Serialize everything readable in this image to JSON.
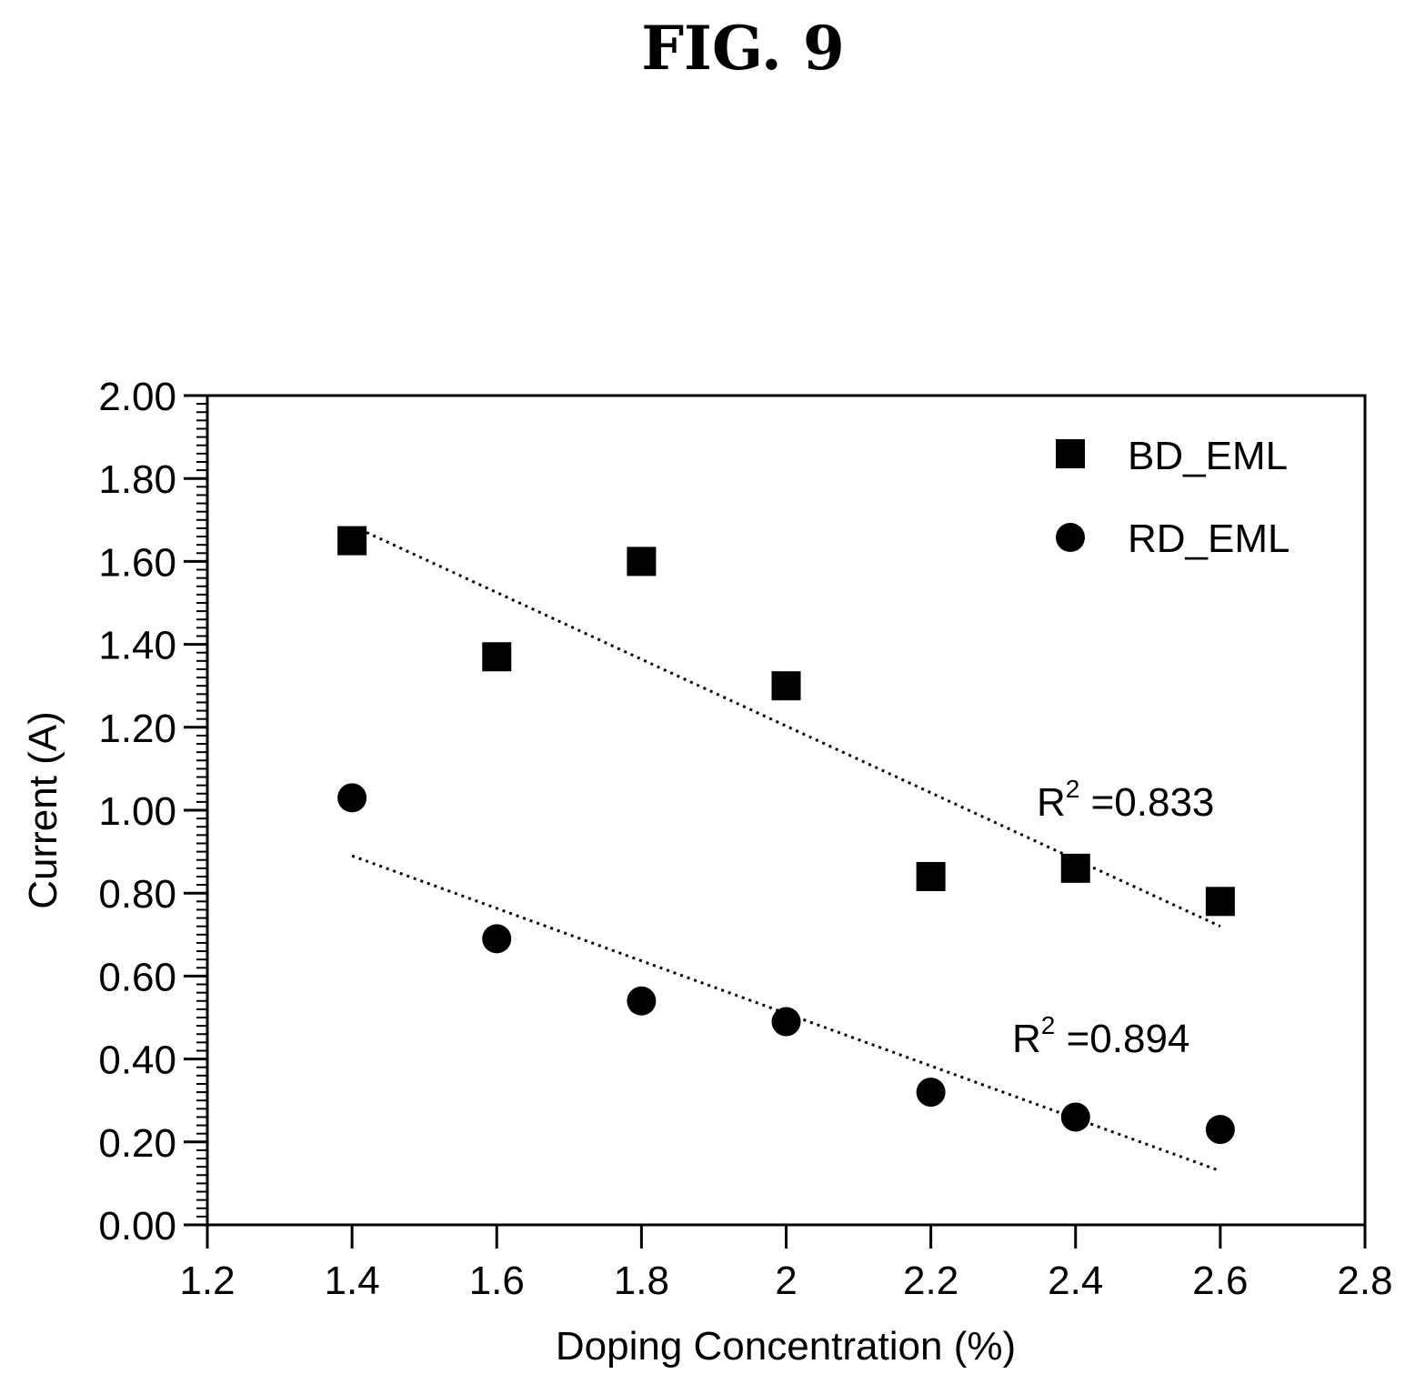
{
  "figure": {
    "title": "FIG. 9"
  },
  "chart_data": {
    "type": "scatter",
    "title": "",
    "xlabel": "Doping Concentration (%)",
    "ylabel": "Current (A)",
    "xlim": [
      1.2,
      2.8
    ],
    "ylim": [
      0,
      2
    ],
    "x_ticks": [
      "1.2",
      "1.4",
      "1.6",
      "1.8",
      "2",
      "2.2",
      "2.4",
      "2.6",
      "2.8"
    ],
    "y_ticks": [
      "0.00",
      "0.20",
      "0.40",
      "0.60",
      "0.80",
      "1.00",
      "1.20",
      "1.40",
      "1.60",
      "1.80",
      "2.00"
    ],
    "grid": false,
    "legend_position": "top-right",
    "series": [
      {
        "name": "BD_EML",
        "marker": "square",
        "color": "#000000",
        "x": [
          1.4,
          1.6,
          1.8,
          2.0,
          2.2,
          2.4,
          2.6
        ],
        "values": [
          1.65,
          1.37,
          1.6,
          1.3,
          0.84,
          0.86,
          0.78
        ],
        "trendline": {
          "x": [
            1.42,
            2.6
          ],
          "y": [
            1.67,
            0.72
          ]
        }
      },
      {
        "name": "RD_EML",
        "marker": "circle",
        "color": "#000000",
        "x": [
          1.4,
          1.6,
          1.8,
          2.0,
          2.2,
          2.4,
          2.6
        ],
        "values": [
          1.03,
          0.69,
          0.54,
          0.49,
          0.32,
          0.26,
          0.23
        ],
        "trendline": {
          "x": [
            1.4,
            2.6
          ],
          "y": [
            0.89,
            0.13
          ]
        }
      }
    ],
    "annotations": [
      {
        "base": "R",
        "sup": "2",
        "text": " =0.833",
        "series": "BD_EML"
      },
      {
        "base": "R",
        "sup": "2",
        "text": " =0.894",
        "series": "RD_EML"
      }
    ]
  }
}
